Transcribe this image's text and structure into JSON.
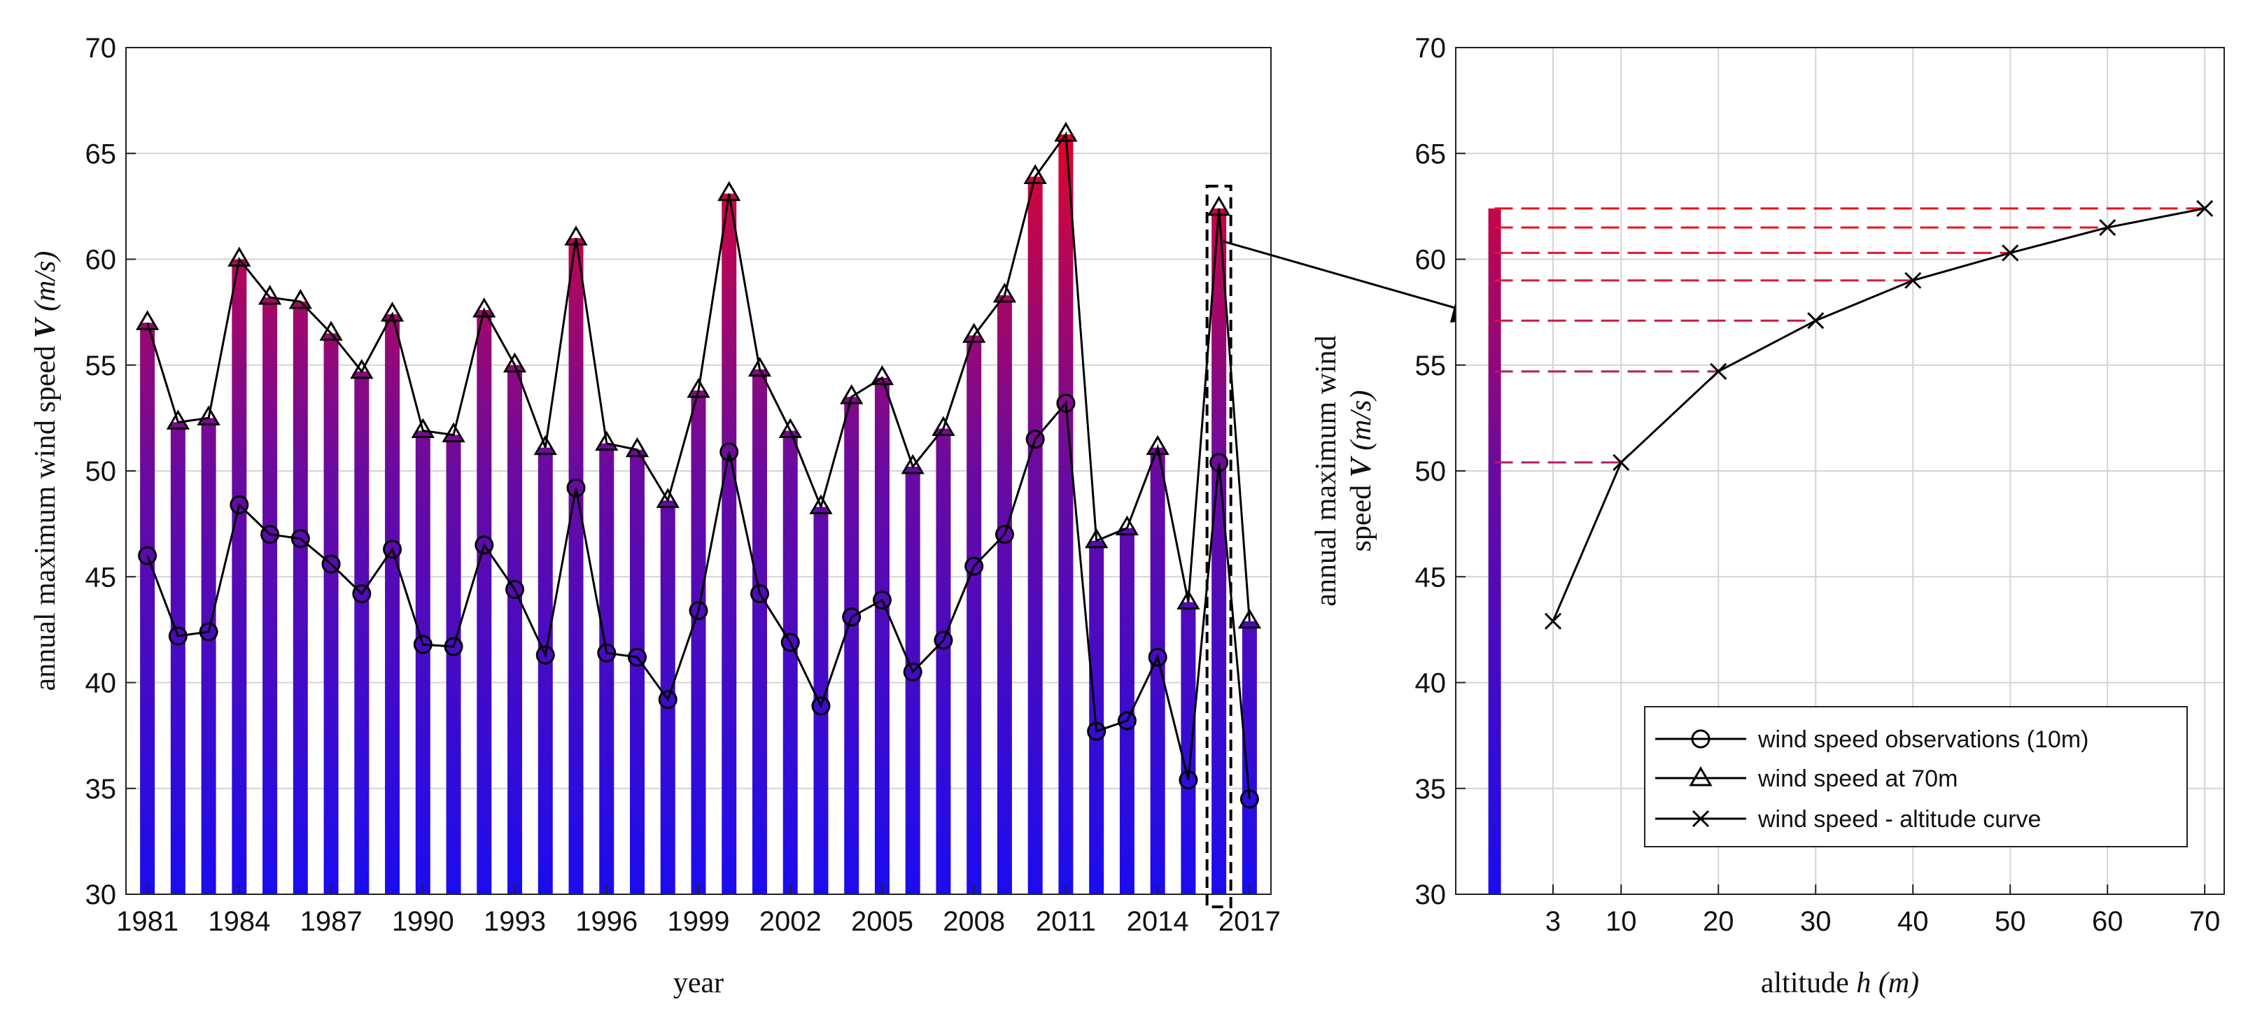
{
  "chart_data": [
    {
      "type": "bar",
      "title": "",
      "xlabel": "year",
      "ylabel_prefix": "annual maximum wind speed ",
      "ylabel_var": "V",
      "ylabel_unit": "(m/s)",
      "xlim": [
        1980.3,
        2017.7
      ],
      "ylim": [
        30,
        70
      ],
      "yticks": [
        30,
        35,
        40,
        45,
        50,
        55,
        60,
        65,
        70
      ],
      "xticks": [
        1981,
        1984,
        1987,
        1990,
        1993,
        1996,
        1999,
        2002,
        2005,
        2008,
        2011,
        2014,
        2017
      ],
      "grid": true,
      "years": [
        1981,
        1982,
        1983,
        1984,
        1985,
        1986,
        1987,
        1988,
        1989,
        1990,
        1991,
        1992,
        1993,
        1994,
        1995,
        1996,
        1997,
        1998,
        1999,
        2000,
        2001,
        2002,
        2003,
        2004,
        2005,
        2006,
        2007,
        2008,
        2009,
        2010,
        2011,
        2012,
        2013,
        2014,
        2015,
        2016,
        2017
      ],
      "series": [
        {
          "name": "wind speed at 70m",
          "marker": "triangle",
          "values": [
            57.0,
            52.3,
            52.5,
            60.0,
            58.2,
            58.0,
            56.5,
            54.7,
            57.4,
            51.9,
            51.7,
            57.6,
            55.0,
            51.1,
            61.0,
            51.3,
            51.0,
            48.6,
            53.8,
            63.1,
            54.8,
            51.9,
            48.3,
            53.5,
            54.4,
            50.2,
            52.0,
            56.4,
            58.3,
            63.9,
            65.9,
            46.7,
            47.3,
            51.1,
            43.8,
            62.4,
            42.9
          ]
        },
        {
          "name": "wind speed observations (10m)",
          "marker": "circle",
          "values": [
            46.0,
            42.2,
            42.4,
            48.4,
            47.0,
            46.8,
            45.6,
            44.2,
            46.3,
            41.8,
            41.7,
            46.5,
            44.4,
            41.3,
            49.2,
            41.4,
            41.2,
            39.2,
            43.4,
            50.9,
            44.2,
            41.9,
            38.9,
            43.1,
            43.9,
            40.5,
            42.0,
            45.5,
            47.0,
            51.5,
            53.2,
            37.7,
            38.2,
            41.2,
            35.4,
            50.4,
            34.5
          ]
        }
      ],
      "highlight": {
        "year": 2016,
        "note": "dashed box links to right panel"
      }
    },
    {
      "type": "line",
      "title": "",
      "xlabel_prefix": "altitude ",
      "xlabel_var": "h",
      "xlabel_unit": "(m)",
      "ylabel_line1": "annual maximum wind",
      "ylabel_line2_prefix": "speed ",
      "ylabel_var": "V",
      "ylabel_unit": "(m/s)",
      "xlim": [
        -7,
        72
      ],
      "ylim": [
        30,
        70
      ],
      "xticks": [
        3,
        10,
        20,
        30,
        40,
        50,
        60,
        70
      ],
      "yticks": [
        30,
        35,
        40,
        45,
        50,
        55,
        60,
        65,
        70
      ],
      "grid": true,
      "series": [
        {
          "name": "wind speed - altitude curve",
          "marker": "x",
          "x": [
            3,
            10,
            20,
            30,
            40,
            50,
            60,
            70
          ],
          "y": [
            42.9,
            50.4,
            54.7,
            57.1,
            59.0,
            60.3,
            61.5,
            62.4
          ]
        }
      ],
      "profile_bar": {
        "x": -3,
        "bottom": 30,
        "top": 62.4
      },
      "legend": {
        "position": "bottom-right",
        "entries": [
          {
            "marker": "circle",
            "label": "wind speed observations (10m)"
          },
          {
            "marker": "triangle",
            "label": "wind speed at 70m"
          },
          {
            "marker": "x",
            "label": "wind speed - altitude curve"
          }
        ]
      }
    }
  ]
}
